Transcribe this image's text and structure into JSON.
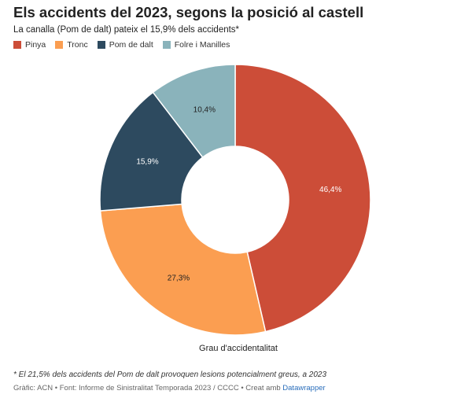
{
  "title": "Els accidents del 2023, segons la posició al castell",
  "subtitle": "La canalla (Pom de dalt) pateix el 15,9% dels accidents*",
  "chart_data": {
    "type": "pie",
    "donut": true,
    "center_label": "Grau d'accidentalitat",
    "categories": [
      "Pinya",
      "Tronc",
      "Pom de dalt",
      "Folre i Manilles"
    ],
    "values": [
      46.4,
      27.3,
      15.9,
      10.4
    ],
    "value_labels": [
      "46,4%",
      "27,3%",
      "15,9%",
      "10,4%"
    ],
    "colors": [
      "#cc4d38",
      "#fb9e51",
      "#2d4a5f",
      "#8ab3bb"
    ],
    "label_colors": [
      "#ffffff",
      "#222222",
      "#ffffff",
      "#222222"
    ],
    "legend_position": "top-left"
  },
  "footnote": "* El 21,5% dels accidents del Pom de dalt provoquen lesions potencialment greus, a 2023",
  "credits": {
    "text": "Gràfic: ACN • Font: Informe de Sinistralitat Temporada 2023 / CCCC • Creat amb",
    "link": "Datawrapper"
  }
}
